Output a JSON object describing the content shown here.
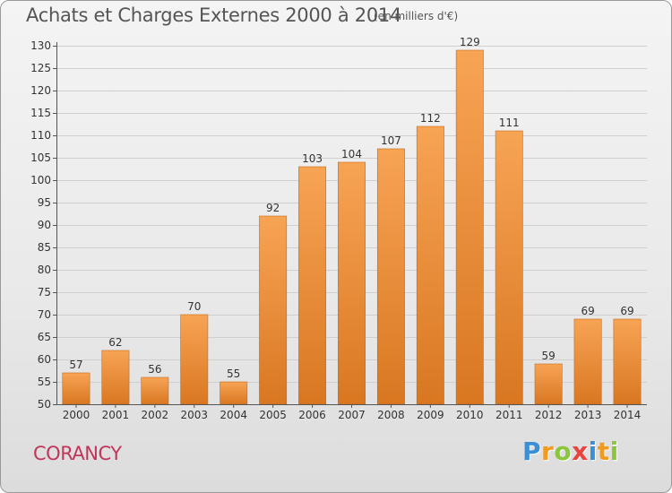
{
  "title": "Achats et Charges Externes 2000 à 2014",
  "subtitle": "(en milliers d'€)",
  "commune": "CORANCY",
  "logo": {
    "text": "Proxiti",
    "letters": [
      {
        "ch": "P",
        "color": "#3b8fd6"
      },
      {
        "ch": "r",
        "color": "#f29a1f"
      },
      {
        "ch": "o",
        "color": "#8cc63f"
      },
      {
        "ch": "x",
        "color": "#e9433f"
      },
      {
        "ch": "i",
        "color": "#3b8fd6"
      },
      {
        "ch": "t",
        "color": "#f29a1f"
      },
      {
        "ch": "i",
        "color": "#8cc63f"
      }
    ]
  },
  "colors": {
    "bar_top": "#f7a455",
    "bar_bottom": "#d97721",
    "bar_edge": "#c86a18",
    "grid": "#cfcfcf",
    "title": "#555555",
    "commune": "#c0365a"
  },
  "chart_data": {
    "type": "bar",
    "categories": [
      "2000",
      "2001",
      "2002",
      "2003",
      "2004",
      "2005",
      "2006",
      "2007",
      "2008",
      "2009",
      "2010",
      "2011",
      "2012",
      "2013",
      "2014"
    ],
    "values": [
      57,
      62,
      56,
      70,
      55,
      92,
      103,
      104,
      107,
      112,
      129,
      111,
      59,
      69,
      69
    ],
    "title": "Achats et Charges Externes 2000 à 2014",
    "subtitle": "(en milliers d'€)",
    "xlabel": "",
    "ylabel": "",
    "ylim": [
      50,
      130
    ],
    "yticks": [
      50,
      55,
      60,
      65,
      70,
      75,
      80,
      85,
      90,
      95,
      100,
      105,
      110,
      115,
      120,
      125,
      130
    ],
    "grid": true,
    "legend": "none"
  }
}
